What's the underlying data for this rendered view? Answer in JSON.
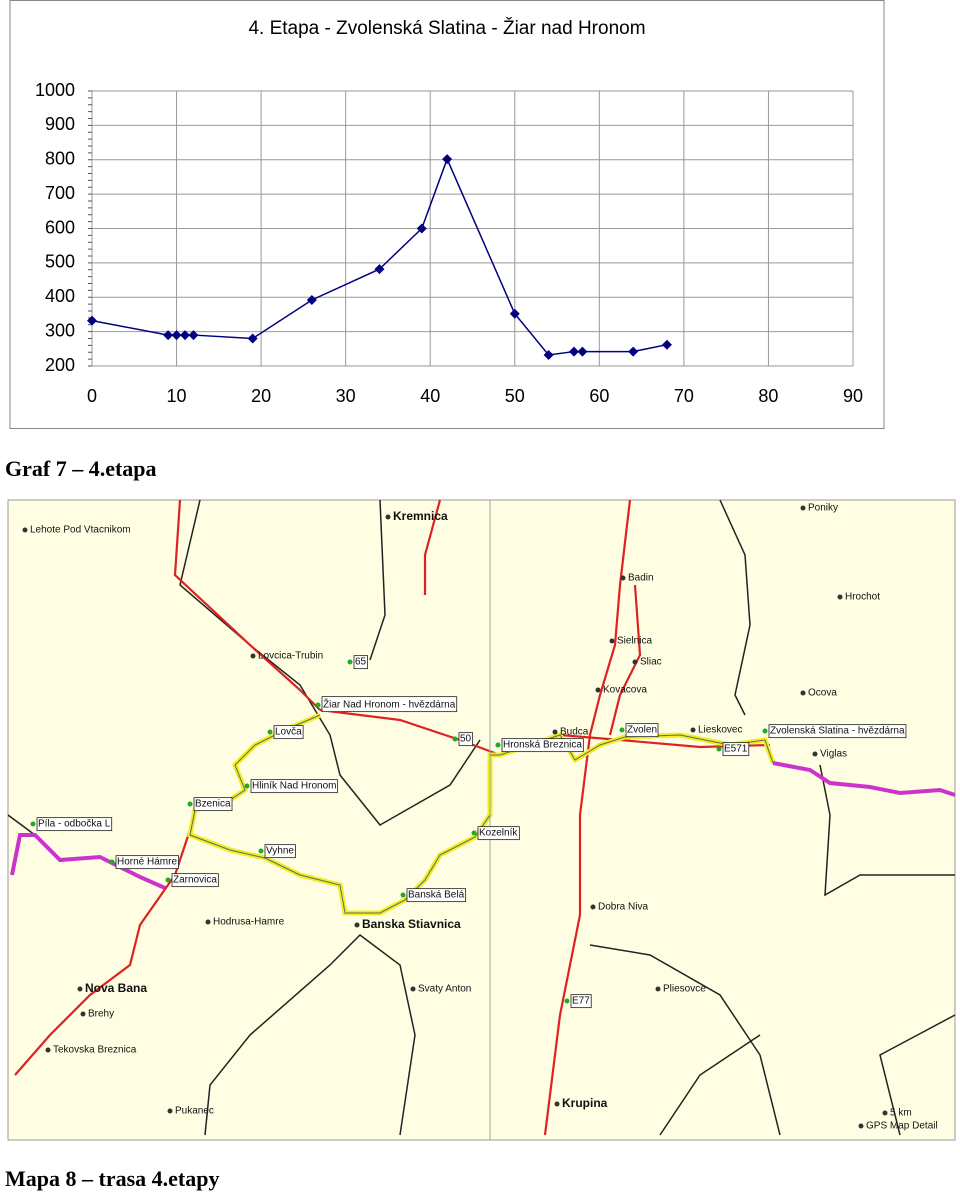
{
  "chart_data": {
    "type": "line",
    "title": "4. Etapa - Zvolenská Slatina - Žiar nad Hronom",
    "x": [
      0,
      9,
      10,
      11,
      12,
      19,
      26,
      34,
      39,
      42,
      50,
      54,
      57,
      58,
      64,
      68
    ],
    "series": [
      {
        "color": "#000080",
        "values": [
          332,
          290,
          290,
          290,
          290,
          280,
          392,
          482,
          600,
          802,
          352,
          232,
          242,
          242,
          242,
          262
        ]
      }
    ],
    "xlim": [
      0,
      90
    ],
    "xticks": [
      0,
      10,
      20,
      30,
      40,
      50,
      60,
      70,
      80,
      90
    ],
    "ylim": [
      200,
      1000
    ],
    "yticks": [
      200,
      300,
      400,
      500,
      600,
      700,
      800,
      900,
      1000
    ],
    "grid": true
  },
  "captions": [
    "Graf 7 – 4.etapa",
    "Mapa 8 – trasa 4.etapy"
  ],
  "map": {
    "labels": [
      "Lehote Pod Vtacnikom",
      "Kremnica",
      "Poniky",
      "Badin",
      "Hrochot",
      "Lovcica-Trubin",
      "Sielnica",
      "Sliac",
      "Kovacova",
      "Ocova",
      "Žiar Nad Hronom - hvězdárna",
      "Lovča",
      "Budca",
      "Zvolen",
      "Lieskovec",
      "Zvolenská Slatina - hvězdárna",
      "Hronská Breznica",
      "Viglas",
      "Hliník Nad Hronom",
      "Bzenica",
      "Píla - odbočka L",
      "Kozelník",
      "Vyhne",
      "Horné Hámre",
      "Zarnovica",
      "Banská Belá",
      "Dobra Niva",
      "Hodrusa-Hamre",
      "Banska Stiavnica",
      "Nova Bana",
      "Svaty Anton",
      "Pliesovce",
      "Brehy",
      "Tekovska Breznica",
      "Pukanec",
      "Krupina",
      "65",
      "50",
      "E571",
      "E77",
      "5 km",
      "GPS Map Detail"
    ]
  }
}
